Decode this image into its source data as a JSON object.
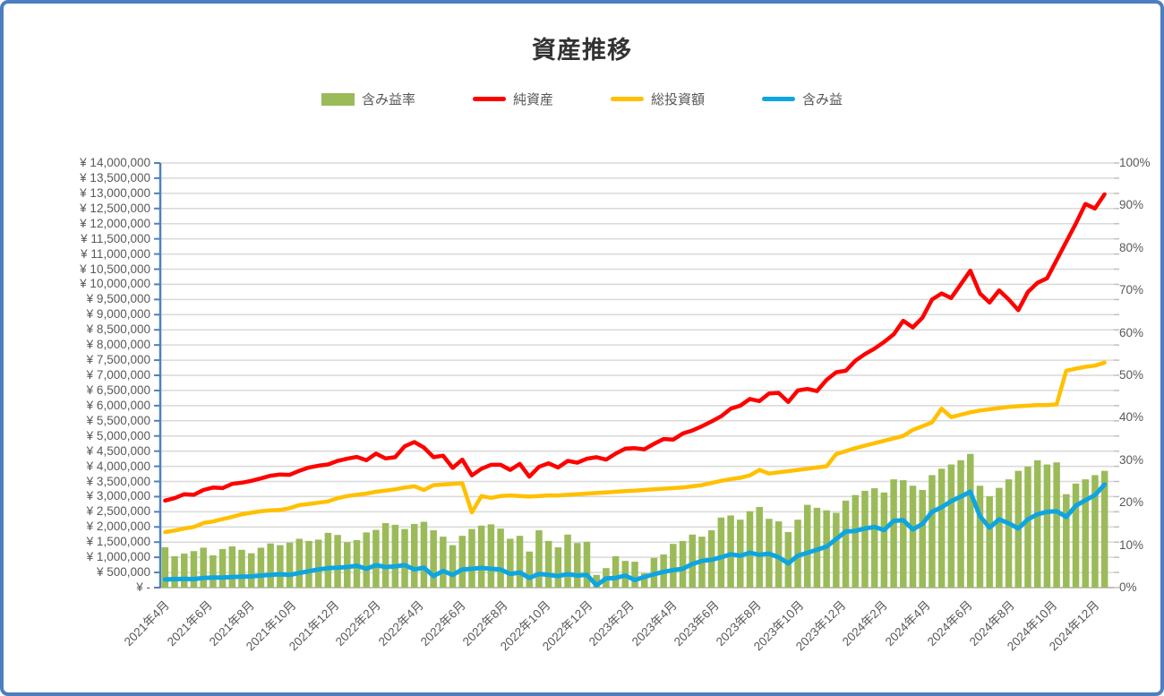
{
  "title": "資産推移",
  "legend": {
    "items": [
      {
        "label": "含み益率",
        "swatch": "bar",
        "color": "#9bbb59"
      },
      {
        "label": "純資産",
        "swatch": "line",
        "color": "#fe0000"
      },
      {
        "label": "総投資額",
        "swatch": "line",
        "color": "#ffc000"
      },
      {
        "label": "含み益",
        "swatch": "line",
        "color": "#0ea5e0"
      }
    ]
  },
  "chart_data": {
    "type": "combo bar+line",
    "note": "values estimated from pixels; series sampled ~biweekly Apr 2021 - Jan 2025",
    "points": 99,
    "x": {
      "start": "2021年4月",
      "end": "2025年1月",
      "tick_labels": [
        "2021年4月",
        "2021年6月",
        "2021年8月",
        "2021年10月",
        "2021年12月",
        "2022年2月",
        "2022年4月",
        "2022年6月",
        "2022年8月",
        "2022年10月",
        "2022年12月",
        "2023年2月",
        "2023年4月",
        "2023年6月",
        "2023年8月",
        "2023年10月",
        "2023年12月",
        "2024年2月",
        "2024年4月",
        "2024年6月",
        "2024年8月",
        "2024年10月",
        "2024年12月"
      ]
    },
    "y_left": {
      "min": 0,
      "max": 14000000,
      "step": 500000,
      "tick_labels": [
        "¥ 14,000,000",
        "¥ 13,500,000",
        "¥ 13,000,000",
        "¥ 12,500,000",
        "¥ 12,000,000",
        "¥ 11,500,000",
        "¥ 11,000,000",
        "¥ 10,500,000",
        "¥ 10,000,000",
        "¥ 9,500,000",
        "¥ 9,000,000",
        "¥ 8,500,000",
        "¥ 8,000,000",
        "¥ 7,500,000",
        "¥ 7,000,000",
        "¥ 6,500,000",
        "¥ 6,000,000",
        "¥ 5,500,000",
        "¥ 5,000,000",
        "¥ 4,500,000",
        "¥ 4,000,000",
        "¥ 3,500,000",
        "¥ 3,000,000",
        "¥ 2,500,000",
        "¥ 2,000,000",
        "¥ 1,500,000",
        "¥ 1,000,000",
        "¥ 500,000",
        "¥ -"
      ]
    },
    "y_right": {
      "min_pct": 0,
      "max_pct": 100,
      "step_pct": 10,
      "tick_labels": [
        "100%",
        "90%",
        "80%",
        "70%",
        "60%",
        "50%",
        "40%",
        "30%",
        "20%",
        "10%",
        "0%"
      ]
    },
    "grid": {
      "color": "#d9d9d9",
      "baseline_color": "#c0c0c0",
      "left_axis_color": "#4f81bd",
      "right_stub_color": "#bfbfbf"
    },
    "series": [
      {
        "name": "含み益率",
        "type": "bar",
        "axis": "right",
        "unit": "percent",
        "color": "#9bbb59",
        "values": [
          9.5,
          7.4,
          8.0,
          8.6,
          9.4,
          7.6,
          9.1,
          9.7,
          8.9,
          8.1,
          9.4,
          10.4,
          10.0,
          10.6,
          11.5,
          11.0,
          11.3,
          12.9,
          12.4,
          10.7,
          11.2,
          13.0,
          13.6,
          15.2,
          14.8,
          13.8,
          15.0,
          15.5,
          13.5,
          12.0,
          10.0,
          12.2,
          13.8,
          14.6,
          14.9,
          13.9,
          11.5,
          12.2,
          8.5,
          13.5,
          11.0,
          9.5,
          12.5,
          10.5,
          10.8,
          3.0,
          4.6,
          7.4,
          6.3,
          6.1,
          3.4,
          7.0,
          7.8,
          10.3,
          11.0,
          12.5,
          12.0,
          13.5,
          16.5,
          17.0,
          16.0,
          18.0,
          19.0,
          16.2,
          15.6,
          13.1,
          16.0,
          19.5,
          18.8,
          18.2,
          17.6,
          20.5,
          21.8,
          22.8,
          23.4,
          22.4,
          25.5,
          25.3,
          24.0,
          23.0,
          26.5,
          28.0,
          29.0,
          30.0,
          31.5,
          24.0,
          21.5,
          23.5,
          25.5,
          27.5,
          28.5,
          30.0,
          29.0,
          29.5,
          22.0,
          24.5,
          25.5,
          26.5,
          27.5
        ]
      },
      {
        "name": "純資産",
        "type": "line",
        "axis": "left",
        "unit": "yen",
        "color": "#fe0000",
        "values": [
          2870000,
          2950000,
          3080000,
          3060000,
          3220000,
          3300000,
          3280000,
          3420000,
          3460000,
          3520000,
          3600000,
          3690000,
          3730000,
          3720000,
          3850000,
          3960000,
          4020000,
          4060000,
          4180000,
          4250000,
          4310000,
          4200000,
          4420000,
          4260000,
          4300000,
          4660000,
          4800000,
          4620000,
          4300000,
          4350000,
          3950000,
          4220000,
          3700000,
          3920000,
          4050000,
          4050000,
          3880000,
          4080000,
          3660000,
          3980000,
          4100000,
          3960000,
          4180000,
          4120000,
          4250000,
          4300000,
          4220000,
          4420000,
          4580000,
          4600000,
          4560000,
          4740000,
          4900000,
          4880000,
          5080000,
          5180000,
          5320000,
          5480000,
          5650000,
          5900000,
          6000000,
          6220000,
          6150000,
          6400000,
          6420000,
          6120000,
          6500000,
          6550000,
          6480000,
          6850000,
          7100000,
          7150000,
          7480000,
          7700000,
          7880000,
          8100000,
          8350000,
          8800000,
          8580000,
          8900000,
          9500000,
          9700000,
          9550000,
          10000000,
          10450000,
          9700000,
          9400000,
          9800000,
          9500000,
          9150000,
          9750000,
          10050000,
          10200000,
          10800000,
          11400000,
          12000000,
          12650000,
          12500000,
          12970000
        ]
      },
      {
        "name": "総投資額",
        "type": "line",
        "axis": "left",
        "unit": "yen",
        "color": "#ffc000",
        "values": [
          1830000,
          1880000,
          1950000,
          2000000,
          2130000,
          2180000,
          2260000,
          2330000,
          2420000,
          2470000,
          2520000,
          2550000,
          2560000,
          2620000,
          2720000,
          2760000,
          2800000,
          2840000,
          2950000,
          3020000,
          3060000,
          3100000,
          3160000,
          3200000,
          3240000,
          3300000,
          3340000,
          3220000,
          3380000,
          3400000,
          3420000,
          3440000,
          2480000,
          3020000,
          2960000,
          3020000,
          3040000,
          3020000,
          3000000,
          3020000,
          3040000,
          3040000,
          3060000,
          3080000,
          3100000,
          3120000,
          3140000,
          3160000,
          3180000,
          3200000,
          3220000,
          3240000,
          3260000,
          3280000,
          3300000,
          3340000,
          3380000,
          3450000,
          3520000,
          3580000,
          3620000,
          3700000,
          3880000,
          3760000,
          3800000,
          3840000,
          3880000,
          3920000,
          3960000,
          4000000,
          4400000,
          4500000,
          4600000,
          4680000,
          4760000,
          4840000,
          4920000,
          5000000,
          5200000,
          5320000,
          5450000,
          5900000,
          5620000,
          5700000,
          5780000,
          5840000,
          5880000,
          5920000,
          5960000,
          5980000,
          6000000,
          6020000,
          6020000,
          6040000,
          7150000,
          7220000,
          7280000,
          7320000,
          7420000
        ]
      },
      {
        "name": "含み益",
        "type": "line",
        "axis": "left",
        "unit": "yen",
        "color": "#0ea5e0",
        "values": [
          270000,
          280000,
          290000,
          280000,
          320000,
          330000,
          330000,
          350000,
          360000,
          370000,
          400000,
          420000,
          440000,
          420000,
          480000,
          540000,
          600000,
          640000,
          660000,
          680000,
          720000,
          620000,
          740000,
          680000,
          700000,
          740000,
          600000,
          660000,
          380000,
          550000,
          420000,
          600000,
          620000,
          650000,
          620000,
          600000,
          450000,
          500000,
          320000,
          450000,
          420000,
          380000,
          440000,
          400000,
          420000,
          80000,
          300000,
          320000,
          400000,
          250000,
          350000,
          440000,
          520000,
          580000,
          620000,
          780000,
          880000,
          920000,
          1000000,
          1100000,
          1050000,
          1150000,
          1080000,
          1120000,
          1000000,
          800000,
          1050000,
          1150000,
          1250000,
          1350000,
          1600000,
          1850000,
          1870000,
          1950000,
          2000000,
          1900000,
          2200000,
          2220000,
          1920000,
          2100000,
          2500000,
          2650000,
          2850000,
          3000000,
          3160000,
          2350000,
          1980000,
          2250000,
          2120000,
          1950000,
          2250000,
          2420000,
          2500000,
          2520000,
          2330000,
          2700000,
          2880000,
          3050000,
          3400000
        ]
      }
    ]
  }
}
